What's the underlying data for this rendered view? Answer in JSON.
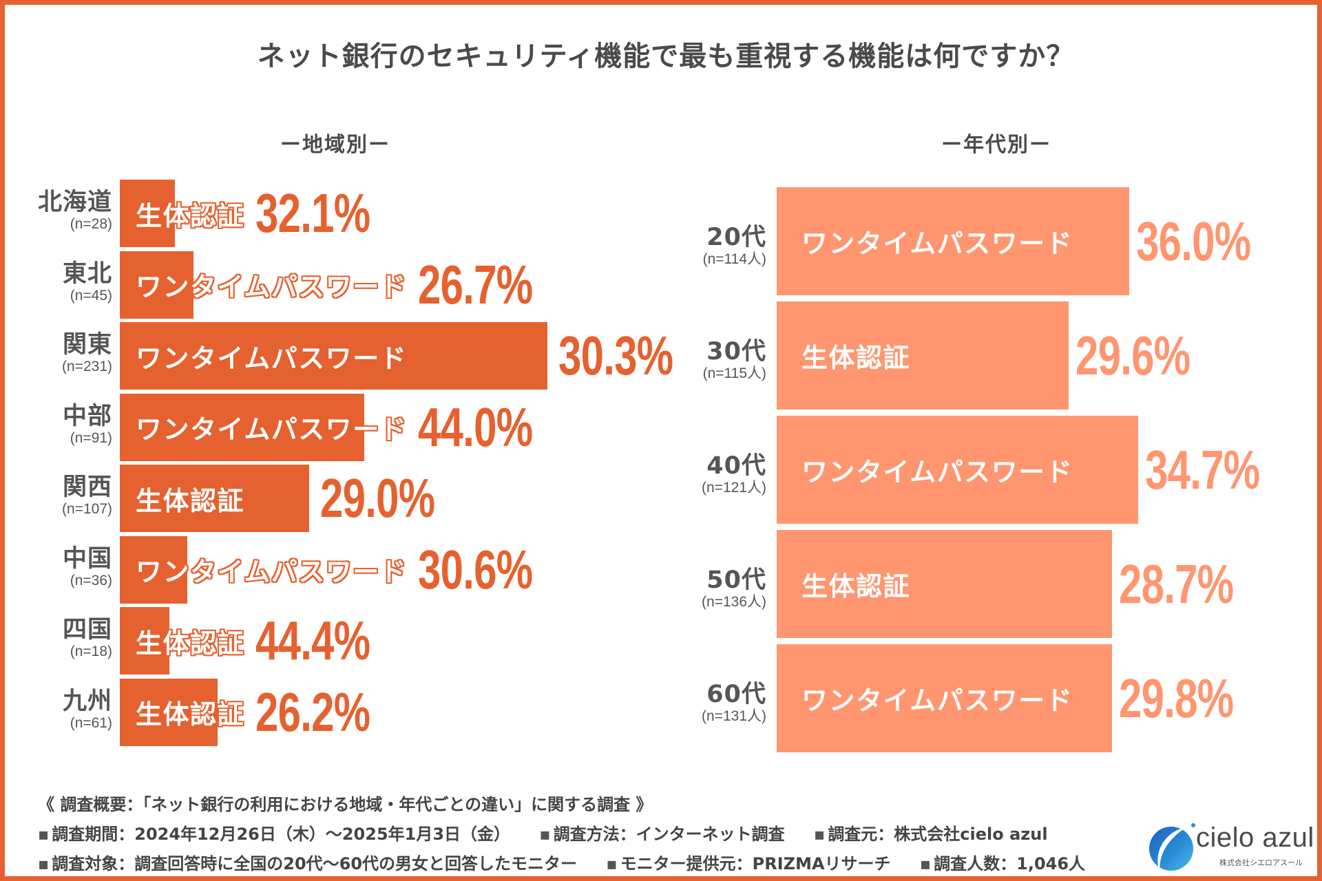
{
  "title": "ネット銀行のセキュリティ機能で最も重視する機能は何ですか？",
  "colors": {
    "frame": "#E5612F",
    "region_bar": "#E5612F",
    "age_bar": "#FF9670",
    "text": "#4a4a4a",
    "logo_blue": "#2A8FD8"
  },
  "chart_data": [
    {
      "type": "bar",
      "orientation": "horizontal",
      "title": "ー地域別ー",
      "categories": [
        "北海道",
        "東北",
        "関東",
        "中部",
        "関西",
        "中国",
        "四国",
        "九州"
      ],
      "sample_sizes": [
        "(n=28)",
        "(n=45)",
        "(n=231)",
        "(n=91)",
        "(n=107)",
        "(n=36)",
        "(n=18)",
        "(n=61)"
      ],
      "top_choice": [
        "生体認証",
        "ワンタイムパスワード",
        "ワンタイムパスワード",
        "ワンタイムパスワード",
        "生体認証",
        "ワンタイムパスワード",
        "生体認証",
        "生体認証"
      ],
      "values": [
        32.1,
        26.7,
        30.3,
        44.0,
        29.0,
        30.6,
        44.4,
        26.2
      ],
      "value_labels": [
        "32.1%",
        "26.7%",
        "30.3%",
        "44.0%",
        "29.0%",
        "30.6%",
        "44.4%",
        "26.2%"
      ],
      "unit": "%",
      "xlabel": "",
      "ylabel": "",
      "grid": false,
      "legend": "none"
    },
    {
      "type": "bar",
      "orientation": "horizontal",
      "title": "ー年代別ー",
      "categories": [
        "20代",
        "30代",
        "40代",
        "50代",
        "60代"
      ],
      "sample_sizes": [
        "(n=114人)",
        "(n=115人)",
        "(n=121人)",
        "(n=136人)",
        "(n=131人)"
      ],
      "top_choice": [
        "ワンタイムパスワード",
        "生体認証",
        "ワンタイムパスワード",
        "生体認証",
        "ワンタイムパスワード"
      ],
      "values": [
        36.0,
        29.6,
        34.7,
        28.7,
        29.8
      ],
      "value_labels": [
        "36.0%",
        "29.6%",
        "34.7%",
        "28.7%",
        "29.8%"
      ],
      "unit": "%",
      "xlabel": "",
      "ylabel": "",
      "grid": false,
      "legend": "none"
    }
  ],
  "footer": {
    "overview": "《 調査概要：「ネット銀行の利用における地域・年代ごとの違い」に関する調査 》",
    "bullet": "▪",
    "line2": [
      "調査期間：2024年12月26日（木）～2025年1月3日（金）",
      "調査方法：インターネット調査",
      "調査元：株式会社cielo azul"
    ],
    "line3": [
      "調査対象：調査回答時に全国の20代～60代の男女と回答したモニター",
      "モニター提供元：PRIZMAリサーチ",
      "調査人数：1,046人"
    ]
  },
  "logo": {
    "name": "cielo azul",
    "subtitle": "株式会社シエロアスール",
    "icon": "cielo-azul-globe-icon"
  }
}
